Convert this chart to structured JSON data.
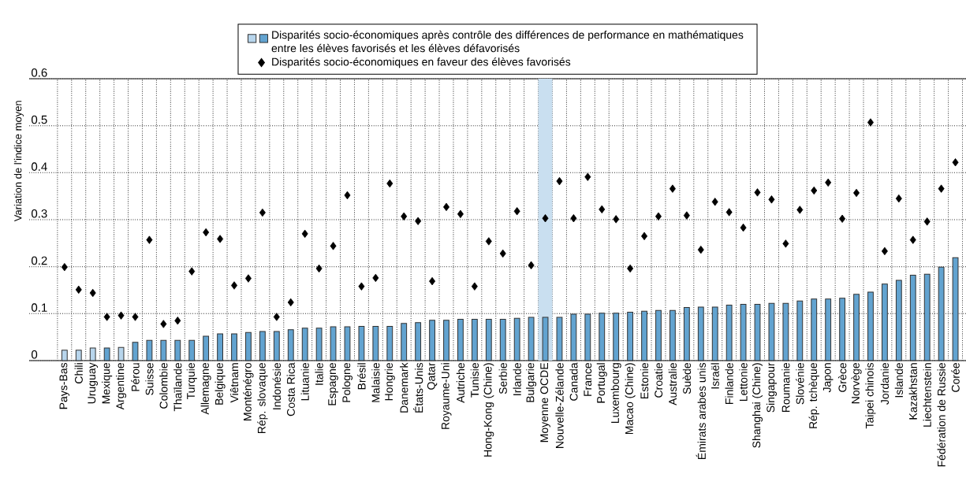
{
  "chart_data": {
    "type": "bar",
    "ylabel": "Variation de l'indice moyen",
    "ylim": [
      0,
      0.6
    ],
    "yticks": [
      0,
      0.1,
      0.2,
      0.3,
      0.4,
      0.5,
      0.6
    ],
    "grid": true,
    "legend": "top",
    "categories": [
      "Pays-Bas",
      "Chili",
      "Uruguay",
      "Mexique",
      "Argentine",
      "Pérou",
      "Suisse",
      "Colombie",
      "Thaïlande",
      "Turquie",
      "Allemagne",
      "Belgique",
      "Viêtnam",
      "Monténégro",
      "Rép. slovaque",
      "Indonésie",
      "Costa Rica",
      "Lituanie",
      "Italie",
      "Espagne",
      "Pologne",
      "Brésil",
      "Malaisie",
      "Hongrie",
      "Danemark",
      "États-Unis",
      "Qatar",
      "Royaume-Uni",
      "Autriche",
      "Tunisie",
      "Hong-Kong (Chine)",
      "Serbie",
      "Irlande",
      "Bulgarie",
      "Moyenne OCDE",
      "Nouvelle-Zélande",
      "Canada",
      "France",
      "Portugal",
      "Luxembourg",
      "Macao (Chine)",
      "Estonie",
      "Croatie",
      "Australie",
      "Suède",
      "Émirats arabes unis",
      "Israël",
      "Finlande",
      "Lettonie",
      "Shanghai (Chine)",
      "Singapour",
      "Roumanie",
      "Slovénie",
      "Rép. tchèque",
      "Japon",
      "Grèce",
      "Norvège",
      "Taipei chinois",
      "Jordanie",
      "Islande",
      "Kazakhstan",
      "Liechtenstein",
      "Fédération de Russie",
      "Corée"
    ],
    "bands": [
      {
        "axis": "x",
        "from": "Moyenne OCDE",
        "to": "Moyenne OCDE",
        "color": "#c9dff0"
      }
    ],
    "series": [
      {
        "name": "Disparités socio-économiques après contrôle des différences de performance en mathématiques entre les élèves favorisés et les élèves défavorisés",
        "color": "#62a3d0",
        "colors": [
          "#b7d5ec",
          "#b7d5ec",
          "#b7d5ec",
          "#62a3d0",
          "#b7d5ec",
          "#62a3d0",
          "#62a3d0",
          "#62a3d0",
          "#62a3d0",
          "#62a3d0",
          "#62a3d0",
          "#62a3d0",
          "#62a3d0",
          "#62a3d0",
          "#62a3d0",
          "#62a3d0",
          "#62a3d0",
          "#62a3d0",
          "#62a3d0",
          "#62a3d0",
          "#62a3d0",
          "#62a3d0",
          "#62a3d0",
          "#62a3d0",
          "#62a3d0",
          "#62a3d0",
          "#62a3d0",
          "#62a3d0",
          "#62a3d0",
          "#62a3d0",
          "#62a3d0",
          "#62a3d0",
          "#62a3d0",
          "#62a3d0",
          "#62a3d0",
          "#62a3d0",
          "#62a3d0",
          "#62a3d0",
          "#62a3d0",
          "#62a3d0",
          "#62a3d0",
          "#62a3d0",
          "#62a3d0",
          "#62a3d0",
          "#62a3d0",
          "#62a3d0",
          "#62a3d0",
          "#62a3d0",
          "#62a3d0",
          "#62a3d0",
          "#62a3d0",
          "#62a3d0",
          "#62a3d0",
          "#62a3d0",
          "#62a3d0",
          "#62a3d0",
          "#62a3d0",
          "#62a3d0",
          "#62a3d0",
          "#62a3d0",
          "#62a3d0",
          "#62a3d0",
          "#62a3d0",
          "#62a3d0"
        ],
        "values": [
          0.022,
          0.022,
          0.027,
          0.027,
          0.028,
          0.039,
          0.043,
          0.043,
          0.043,
          0.043,
          0.052,
          0.057,
          0.057,
          0.06,
          0.062,
          0.062,
          0.066,
          0.069,
          0.069,
          0.072,
          0.072,
          0.073,
          0.073,
          0.073,
          0.079,
          0.081,
          0.086,
          0.086,
          0.088,
          0.088,
          0.088,
          0.088,
          0.09,
          0.092,
          0.092,
          0.092,
          0.099,
          0.099,
          0.101,
          0.101,
          0.103,
          0.105,
          0.107,
          0.107,
          0.113,
          0.114,
          0.114,
          0.118,
          0.12,
          0.12,
          0.122,
          0.122,
          0.127,
          0.131,
          0.131,
          0.133,
          0.141,
          0.146,
          0.163,
          0.171,
          0.182,
          0.184,
          0.199,
          0.219
        ]
      },
      {
        "name": "Disparités socio-économiques en faveur des élèves favorisés",
        "type": "scatter",
        "color": "#000000",
        "marker": "diamond",
        "values": [
          0.199,
          0.151,
          0.144,
          0.093,
          0.096,
          0.093,
          0.257,
          0.078,
          0.085,
          0.19,
          0.273,
          0.259,
          0.16,
          0.175,
          0.315,
          0.093,
          0.124,
          0.27,
          0.196,
          0.244,
          0.352,
          0.158,
          0.176,
          0.377,
          0.307,
          0.297,
          0.169,
          0.327,
          0.312,
          0.158,
          0.254,
          0.228,
          0.318,
          0.203,
          0.303,
          0.382,
          0.303,
          0.391,
          0.322,
          0.301,
          0.196,
          0.265,
          0.307,
          0.366,
          0.309,
          0.236,
          0.338,
          0.316,
          0.283,
          0.358,
          0.343,
          0.249,
          0.321,
          0.362,
          0.379,
          0.302,
          0.357,
          0.507,
          0.233,
          0.345,
          0.257,
          0.296,
          0.366,
          0.422
        ]
      }
    ]
  }
}
